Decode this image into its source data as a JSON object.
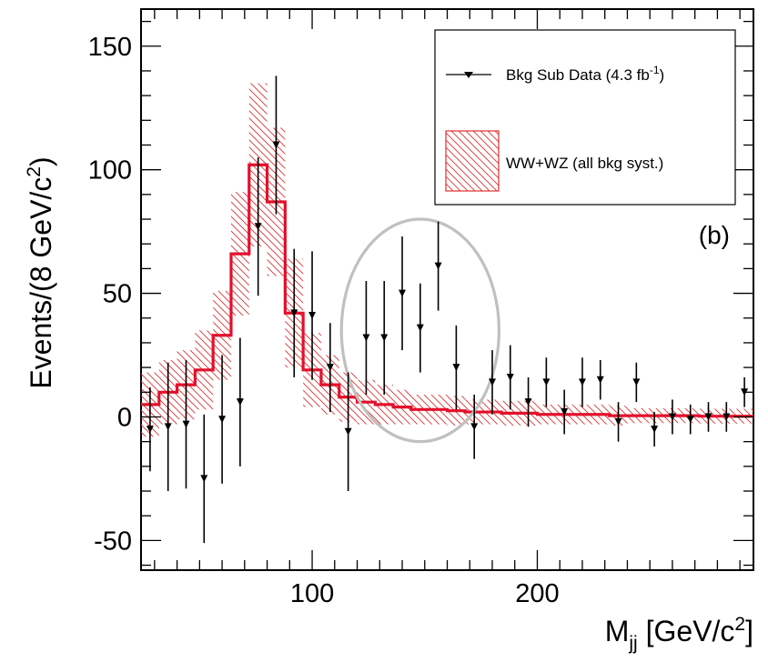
{
  "chart_data": {
    "type": "scatter",
    "title": "",
    "xlabel": "M_jj [GeV/c^2]",
    "ylabel": "Events/(8 GeV/c^2)",
    "xlim": [
      24,
      296
    ],
    "ylim": [
      -62,
      165
    ],
    "x_ticks": [
      100,
      200
    ],
    "y_ticks": [
      -50,
      0,
      50,
      100,
      150
    ],
    "panel_label": "(b)",
    "legend": {
      "placement": "top-right",
      "entries": [
        "Bkg Sub Data (4.3 fb",
        "WW+WZ (all bkg syst.)"
      ],
      "data_entry_super": "-1",
      "data_entry_close": ")"
    },
    "series": [
      {
        "name": "Bkg Sub Data (4.3 fb-1)",
        "kind": "points",
        "color": "#000000",
        "points": [
          {
            "x": 28,
            "y": -5,
            "err": 17
          },
          {
            "x": 36,
            "y": -4,
            "err": 26
          },
          {
            "x": 44,
            "y": -3,
            "err": 26
          },
          {
            "x": 52,
            "y": -25,
            "err": 26
          },
          {
            "x": 60,
            "y": -1,
            "err": 26
          },
          {
            "x": 68,
            "y": 6,
            "err": 26
          },
          {
            "x": 76,
            "y": 77,
            "err": 28
          },
          {
            "x": 84,
            "y": 110,
            "err": 28
          },
          {
            "x": 92,
            "y": 42,
            "err": 26
          },
          {
            "x": 100,
            "y": 41,
            "err": 26
          },
          {
            "x": 108,
            "y": 20,
            "err": 18
          },
          {
            "x": 116,
            "y": -6,
            "err": 24
          },
          {
            "x": 124,
            "y": 32,
            "err": 23
          },
          {
            "x": 132,
            "y": 32,
            "err": 23
          },
          {
            "x": 140,
            "y": 50,
            "err": 23
          },
          {
            "x": 148,
            "y": 36,
            "err": 18
          },
          {
            "x": 156,
            "y": 61,
            "err": 18
          },
          {
            "x": 164,
            "y": 20,
            "err": 17
          },
          {
            "x": 172,
            "y": -4,
            "err": 13
          },
          {
            "x": 180,
            "y": 14,
            "err": 13
          },
          {
            "x": 188,
            "y": 16,
            "err": 13
          },
          {
            "x": 196,
            "y": 6,
            "err": 10
          },
          {
            "x": 204,
            "y": 14,
            "err": 10
          },
          {
            "x": 212,
            "y": 2,
            "err": 9
          },
          {
            "x": 220,
            "y": 14,
            "err": 10
          },
          {
            "x": 228,
            "y": 15,
            "err": 8
          },
          {
            "x": 236,
            "y": -2,
            "err": 8
          },
          {
            "x": 244,
            "y": 14,
            "err": 8
          },
          {
            "x": 252,
            "y": -5,
            "err": 7
          },
          {
            "x": 260,
            "y": 0,
            "err": 7
          },
          {
            "x": 268,
            "y": -1,
            "err": 6
          },
          {
            "x": 276,
            "y": 0,
            "err": 6
          },
          {
            "x": 284,
            "y": 0,
            "err": 6
          },
          {
            "x": 292,
            "y": 10,
            "err": 6
          }
        ]
      },
      {
        "name": "WW+WZ (all bkg syst.)",
        "kind": "histogram",
        "color": "#e3102c",
        "band_color": "#e03030",
        "bins_low": [
          24,
          32,
          40,
          48,
          56,
          64,
          72,
          80,
          88,
          96,
          104,
          112,
          120,
          128,
          136,
          144,
          152,
          160,
          168,
          176,
          184,
          192,
          200,
          208,
          216,
          224,
          232,
          240,
          248,
          256,
          264,
          272,
          280,
          288
        ],
        "bin_width": 8,
        "values": [
          5,
          10,
          13,
          19,
          33,
          66,
          102,
          87,
          42,
          19,
          13,
          8,
          6,
          5,
          4,
          3,
          3,
          2.5,
          2,
          2,
          1.5,
          1.5,
          1,
          1,
          1,
          1,
          0.5,
          0.5,
          0.5,
          0.5,
          0.5,
          0.3,
          0.3,
          0.3
        ],
        "uncertainty": [
          13,
          13,
          14,
          16,
          18,
          25,
          33,
          30,
          22,
          15,
          12,
          10,
          9,
          8,
          7,
          6,
          6,
          6,
          5,
          5,
          5,
          5,
          4,
          4,
          4,
          4,
          4,
          3,
          3,
          3,
          3,
          3,
          3,
          3
        ]
      }
    ],
    "annotation": {
      "shape": "ellipse",
      "color": "#c0c0c0",
      "cx": 148,
      "cy": 35,
      "rx": 35,
      "ry": 45
    }
  }
}
